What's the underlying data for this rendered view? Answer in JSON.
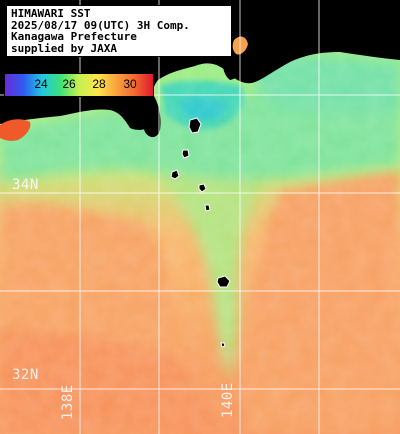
{
  "header": {
    "lines": [
      "HIMAWARI SST",
      "2025/08/17 09(UTC) 3H Comp.",
      "Kanagawa Prefecture",
      "supplied by JAXA"
    ]
  },
  "colorbar": {
    "ticks": [
      "24",
      "26",
      "28",
      "30"
    ],
    "range_c": [
      22,
      32
    ],
    "colors": [
      "#6a2bd6",
      "#2f5bf0",
      "#21c8e0",
      "#3ee07a",
      "#c6f050",
      "#fde64a",
      "#f9a43c",
      "#f26a30",
      "#e0182c"
    ]
  },
  "axes": {
    "lat_labels": [
      "34N",
      "32N"
    ],
    "lon_labels": [
      "138E",
      "140E"
    ]
  },
  "colors": {
    "land": "#000000",
    "grid": "#ffffff",
    "warm_sea": "#f89e5a",
    "mid_sea": "#b9f07a",
    "cool_sea": "#5fe09c",
    "cold_sea": "#2fd0c0"
  },
  "icons": [
    "grid-lines",
    "land-mask"
  ]
}
